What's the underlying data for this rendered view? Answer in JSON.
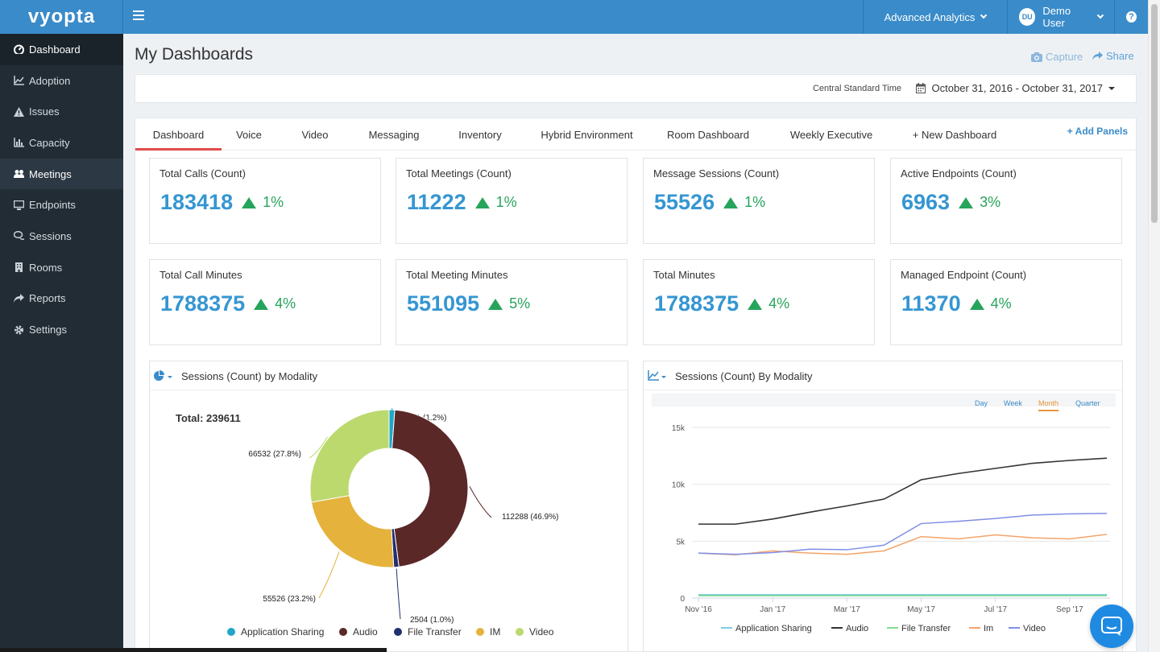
{
  "app": {
    "logo": "vyopta",
    "menu": "Advanced Analytics",
    "user_initials": "DU",
    "user_name": "Demo User",
    "help": "?"
  },
  "sidebar": {
    "items": [
      {
        "label": "Dashboard",
        "icon": "dashboard-icon"
      },
      {
        "label": "Adoption",
        "icon": "line-chart-icon"
      },
      {
        "label": "Issues",
        "icon": "warning-icon"
      },
      {
        "label": "Capacity",
        "icon": "bar-chart-icon"
      },
      {
        "label": "Meetings",
        "icon": "users-icon"
      },
      {
        "label": "Endpoints",
        "icon": "desktop-icon"
      },
      {
        "label": "Sessions",
        "icon": "comments-icon"
      },
      {
        "label": "Rooms",
        "icon": "building-icon"
      },
      {
        "label": "Reports",
        "icon": "share-icon"
      },
      {
        "label": "Settings",
        "icon": "gear-icon"
      }
    ]
  },
  "header": {
    "title": "My Dashboards",
    "capture": "Capture",
    "share": "Share",
    "timezone": "Central Standard Time",
    "date_range": "October 31, 2016 - October 31, 2017"
  },
  "tabs": [
    "Dashboard",
    "Voice",
    "Video",
    "Messaging",
    "Inventory",
    "Hybrid Environment",
    "Room Dashboard",
    "Weekly Executive",
    "+ New Dashboard"
  ],
  "add_panels": "+ Add Panels",
  "kpis": [
    {
      "label": "Total Calls (Count)",
      "value": "183418",
      "change": "1%"
    },
    {
      "label": "Total Meetings (Count)",
      "value": "11222",
      "change": "1%"
    },
    {
      "label": "Message Sessions (Count)",
      "value": "55526",
      "change": "1%"
    },
    {
      "label": "Active Endpoints (Count)",
      "value": "6963",
      "change": "3%"
    },
    {
      "label": "Total Call Minutes",
      "value": "1788375",
      "change": "4%"
    },
    {
      "label": "Total Meeting Minutes",
      "value": "551095",
      "change": "5%"
    },
    {
      "label": "Total Minutes",
      "value": "1788375",
      "change": "4%"
    },
    {
      "label": "Managed Endpoint (Count)",
      "value": "11370",
      "change": "4%"
    }
  ],
  "range_buttons": [
    "Day",
    "Week",
    "Month",
    "Quarter"
  ],
  "colors": {
    "application_sharing": "#1fa7c9",
    "audio": "#5b2828",
    "file_transfer": "#23306e",
    "im": "#e5b23c",
    "video": "#bcd96e",
    "line_app_sharing": "#7fcbe0",
    "line_audio": "#333333",
    "line_file_transfer": "#7fdc8f",
    "line_im": "#f3a46a",
    "line_video": "#7f8fe6"
  },
  "chart_data": [
    {
      "type": "pie",
      "title": "Sessions (Count) by Modality",
      "total_label": "Total: 239611",
      "slices": [
        {
          "name": "Application Sharing",
          "value": 2761,
          "label": "2761 (1.2%)"
        },
        {
          "name": "Audio",
          "value": 112288,
          "label": "112288 (46.9%)"
        },
        {
          "name": "File Transfer",
          "value": 2504,
          "label": "2504 (1.0%)"
        },
        {
          "name": "IM",
          "value": 55526,
          "label": "55526 (23.2%)"
        },
        {
          "name": "Video",
          "value": 66532,
          "label": "66532 (27.8%)"
        }
      ]
    },
    {
      "type": "line",
      "title": "Sessions (Count) By Modality",
      "x": [
        "Nov '16",
        "Dec '16",
        "Jan '17",
        "Feb '17",
        "Mar '17",
        "Apr '17",
        "May '17",
        "Jun '17",
        "Jul '17",
        "Aug '17",
        "Sep '17",
        "Oct '17"
      ],
      "x_ticks": [
        "Nov '16",
        "Jan '17",
        "Mar '17",
        "May '17",
        "Jul '17",
        "Sep '17"
      ],
      "y_ticks": [
        "0",
        "5k",
        "10k",
        "15k"
      ],
      "ylim": [
        0,
        15000
      ],
      "series": [
        {
          "name": "Application Sharing",
          "values": [
            300,
            300,
            300,
            300,
            300,
            300,
            300,
            300,
            300,
            300,
            300,
            300
          ]
        },
        {
          "name": "Audio",
          "values": [
            6500,
            6500,
            6950,
            7550,
            8100,
            8700,
            10400,
            10950,
            11400,
            11850,
            12100,
            12300
          ]
        },
        {
          "name": "File Transfer",
          "values": [
            200,
            200,
            200,
            200,
            200,
            200,
            200,
            200,
            200,
            200,
            200,
            200
          ]
        },
        {
          "name": "Im",
          "values": [
            3950,
            3800,
            4150,
            3950,
            3850,
            4150,
            5400,
            5200,
            5550,
            5300,
            5200,
            5600
          ]
        },
        {
          "name": "Video",
          "values": [
            3950,
            3850,
            4000,
            4300,
            4250,
            4650,
            6550,
            6750,
            7000,
            7300,
            7400,
            7450
          ]
        }
      ]
    }
  ]
}
